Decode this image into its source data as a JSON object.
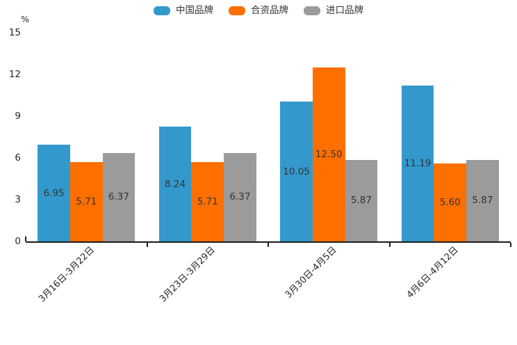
{
  "chart_data": {
    "type": "bar",
    "title": "",
    "xlabel": "",
    "ylabel": "%",
    "ylim": [
      0,
      15
    ],
    "yticks": [
      0,
      3,
      6,
      9,
      12,
      15
    ],
    "grid": false,
    "legend_position": "top-center",
    "axis_color": "#1a1a1a",
    "text_color": "#333333",
    "categories": [
      "3月16日-3月22日",
      "3月23日-3月29日",
      "3月30日-4月5日",
      "4月6日-4月12日"
    ],
    "series": [
      {
        "name": "中国品牌",
        "color": "#3399CC",
        "values": [
          6.95,
          8.24,
          10.05,
          11.19
        ],
        "labels": [
          "6.95",
          "8.24",
          "10.05",
          "11.19"
        ]
      },
      {
        "name": "合资品牌",
        "color": "#FF6F00",
        "values": [
          5.71,
          5.71,
          12.5,
          5.6
        ],
        "labels": [
          "5.71",
          "5.71",
          "12.50",
          "5.60"
        ]
      },
      {
        "name": "进口品牌",
        "color": "#9B9B9B",
        "values": [
          6.37,
          6.37,
          5.87,
          5.87
        ],
        "labels": [
          "6.37",
          "6.37",
          "5.87",
          "5.87"
        ]
      }
    ]
  }
}
